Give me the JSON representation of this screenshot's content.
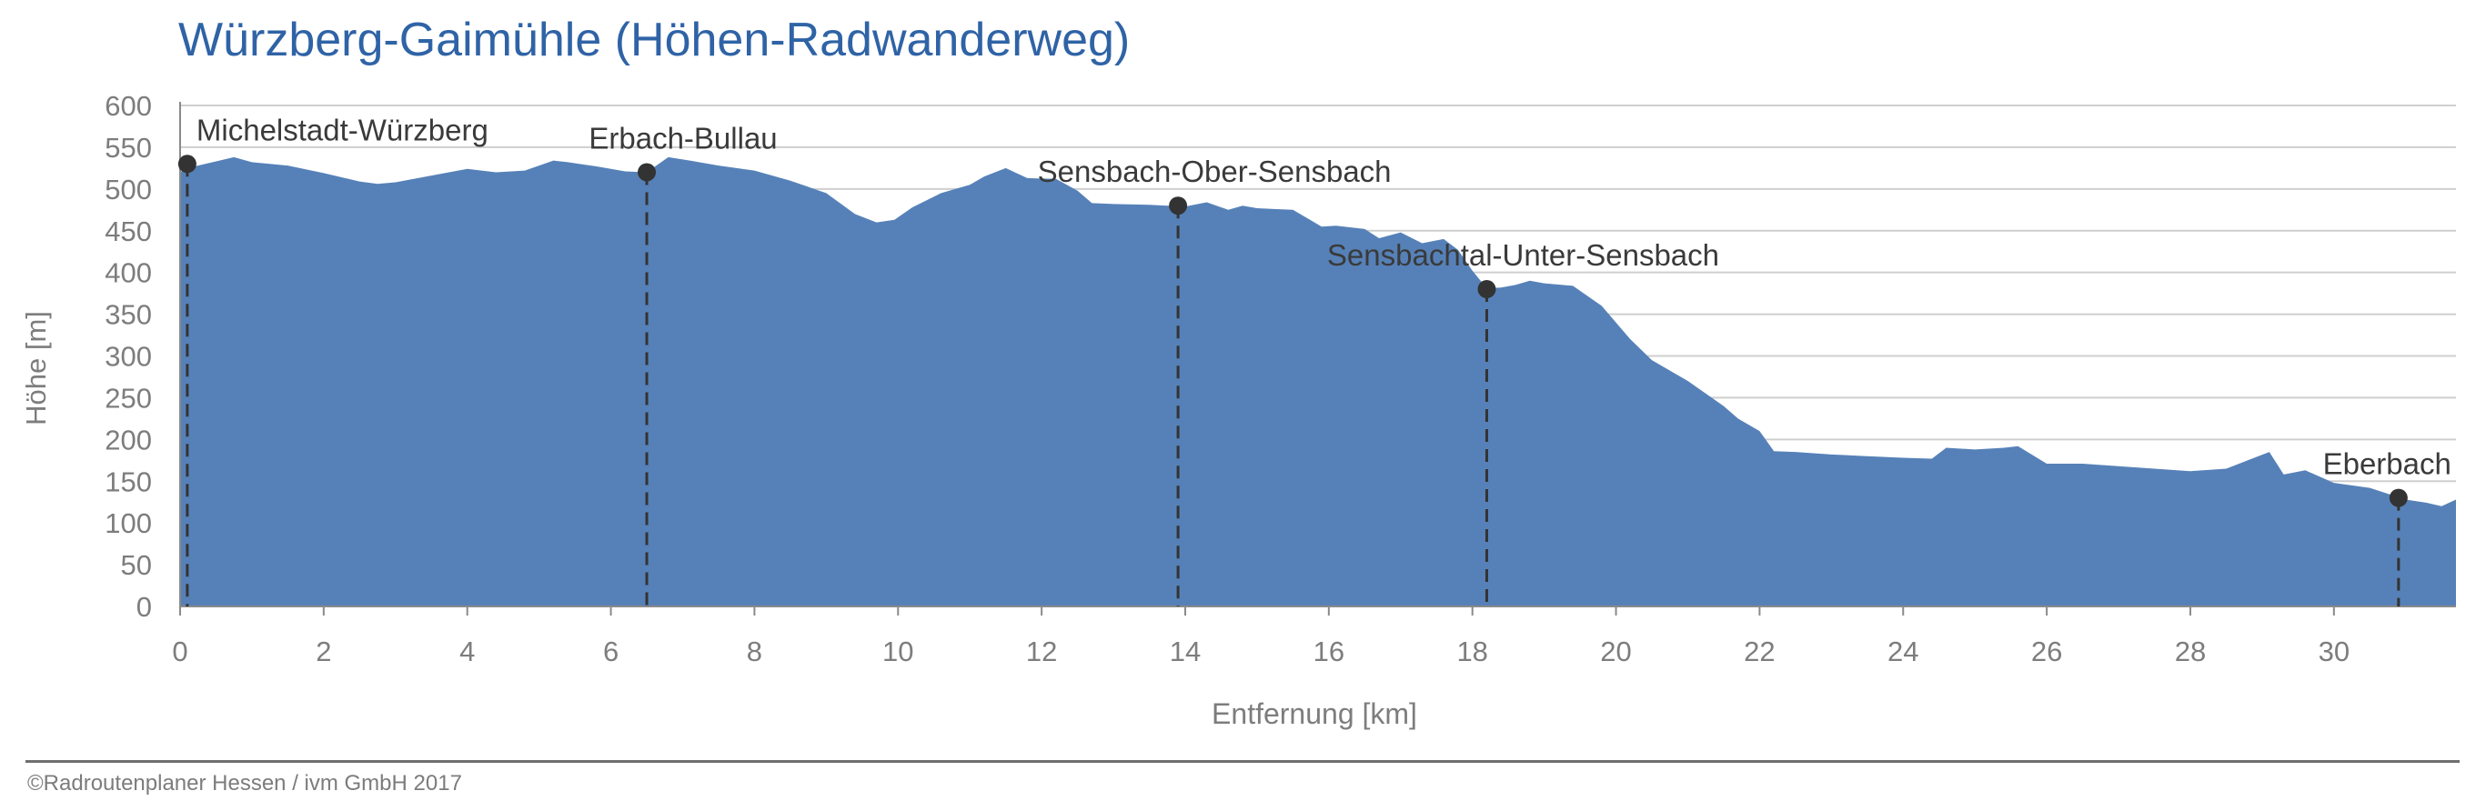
{
  "chart_data": {
    "type": "area",
    "title": "Würzberg-Gaimühle (Höhen-Radwanderweg)",
    "xlabel": "Entfernung [km]",
    "ylabel": "Höhe [m]",
    "xlim": [
      0,
      31.7
    ],
    "ylim": [
      0,
      600
    ],
    "x_ticks": [
      0,
      2,
      4,
      6,
      8,
      10,
      12,
      14,
      16,
      18,
      20,
      22,
      24,
      26,
      28,
      30
    ],
    "y_ticks": [
      0,
      50,
      100,
      150,
      200,
      250,
      300,
      350,
      400,
      450,
      500,
      550,
      600
    ],
    "grid": "horizontal",
    "fill_color": "#5681b8",
    "profile": {
      "x": [
        0,
        0.1,
        0.5,
        0.75,
        1.0,
        1.5,
        2.0,
        2.5,
        2.75,
        3.0,
        3.5,
        4.0,
        4.4,
        4.8,
        5.2,
        5.4,
        5.8,
        6.2,
        6.5,
        6.8,
        7.1,
        7.5,
        8.0,
        8.5,
        9.0,
        9.4,
        9.7,
        9.95,
        10.2,
        10.6,
        11.0,
        11.2,
        11.5,
        11.8,
        12.2,
        12.5,
        12.7,
        13.0,
        13.5,
        14.0,
        14.3,
        14.6,
        14.8,
        15.0,
        15.5,
        15.9,
        16.1,
        16.5,
        16.7,
        17.0,
        17.3,
        17.6,
        17.8,
        18.0,
        18.2,
        18.4,
        18.6,
        18.8,
        19.0,
        19.4,
        19.8,
        20.2,
        20.5,
        21.0,
        21.5,
        21.7,
        22.0,
        22.2,
        22.5,
        23.0,
        23.5,
        24.0,
        24.4,
        24.6,
        25.0,
        25.4,
        25.6,
        26.0,
        26.5,
        27.0,
        27.5,
        28.0,
        28.5,
        28.8,
        29.1,
        29.3,
        29.6,
        30.0,
        30.5,
        31.0,
        31.3,
        31.5,
        31.7
      ],
      "y": [
        520,
        525,
        533,
        538,
        532,
        528,
        519,
        509,
        506,
        508,
        516,
        524,
        520,
        522,
        534,
        532,
        527,
        521,
        520,
        538,
        534,
        528,
        522,
        510,
        495,
        470,
        460,
        463,
        478,
        495,
        505,
        515,
        525,
        513,
        512,
        498,
        483,
        482,
        481,
        479,
        484,
        475,
        480,
        477,
        475,
        455,
        456,
        452,
        441,
        448,
        435,
        440,
        427,
        402,
        381,
        382,
        385,
        390,
        387,
        384,
        360,
        320,
        295,
        270,
        240,
        225,
        210,
        186,
        185,
        182,
        180,
        178,
        177,
        190,
        188,
        190,
        192,
        171,
        171,
        168,
        165,
        162,
        165,
        175,
        185,
        158,
        163,
        148,
        142,
        128,
        124,
        120,
        128
      ]
    },
    "waypoints": [
      {
        "name": "Michelstadt-Würzberg",
        "x": 0.1,
        "y": 530
      },
      {
        "name": "Erbach-Bullau",
        "x": 6.5,
        "y": 520
      },
      {
        "name": "Sensbach-Ober-Sensbach",
        "x": 13.9,
        "y": 480
      },
      {
        "name": "Sensbachtal-Unter-Sensbach",
        "x": 18.2,
        "y": 380
      },
      {
        "name": "Eberbach",
        "x": 30.9,
        "y": 130
      }
    ]
  },
  "footer": {
    "copyright": "©Radroutenplaner Hessen / ivm GmbH 2017"
  }
}
